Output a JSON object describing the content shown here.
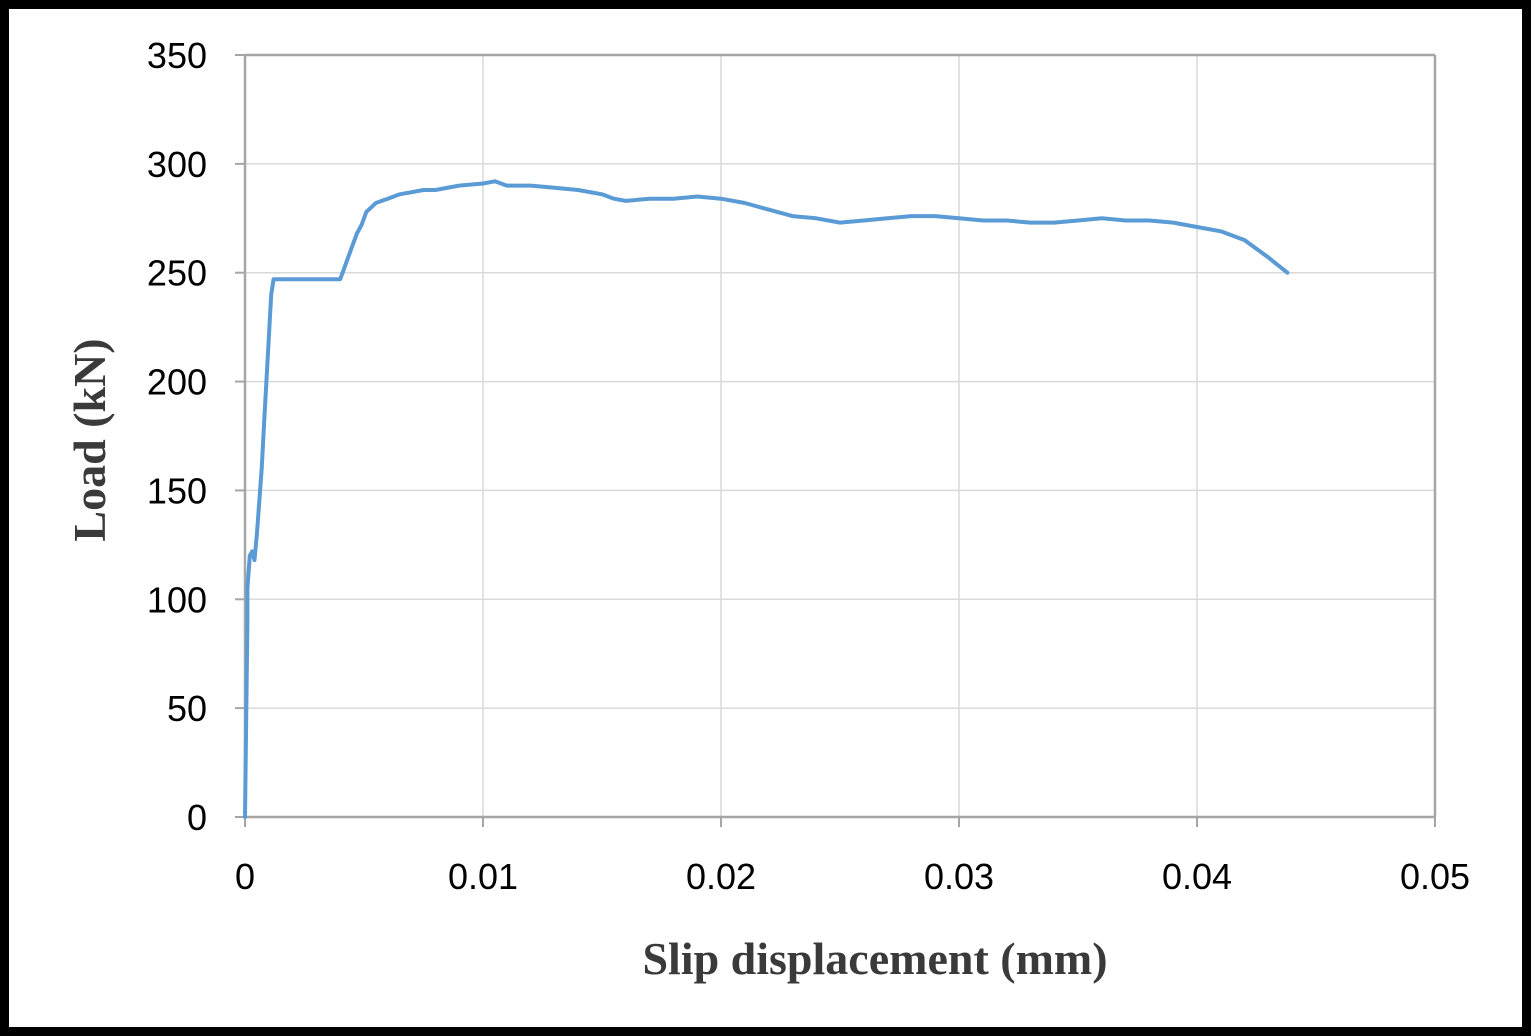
{
  "chart_data": {
    "type": "line",
    "xlabel": "Slip displacement (mm)",
    "ylabel": "Load (kN)",
    "xlim": [
      0,
      0.05
    ],
    "ylim": [
      0,
      350
    ],
    "x_ticks": [
      "0",
      "0.01",
      "0.02",
      "0.03",
      "0.04",
      "0.05"
    ],
    "y_ticks": [
      "0",
      "50",
      "100",
      "150",
      "200",
      "250",
      "300",
      "350"
    ],
    "grid": true,
    "legend": "none",
    "colors": {
      "series": "#5b9bd5",
      "grid": "#d9d9d9",
      "axis": "#a6a6a6"
    },
    "series": [
      {
        "x": [
          0,
          0.0001,
          0.0001,
          0.0002,
          0.0003,
          0.0004,
          0.0005,
          0.0006,
          0.0007,
          0.0008,
          0.0009,
          0.001,
          0.0011,
          0.0012,
          0.0013,
          0.002,
          0.003,
          0.004,
          0.0041,
          0.0043,
          0.0045,
          0.0047,
          0.0049,
          0.0051,
          0.0055,
          0.006,
          0.0065,
          0.007,
          0.0075,
          0.008,
          0.009,
          0.01,
          0.0105,
          0.011,
          0.012,
          0.013,
          0.014,
          0.015,
          0.0155,
          0.016,
          0.017,
          0.018,
          0.019,
          0.02,
          0.021,
          0.022,
          0.023,
          0.024,
          0.025,
          0.026,
          0.027,
          0.028,
          0.029,
          0.03,
          0.031,
          0.032,
          0.033,
          0.034,
          0.035,
          0.036,
          0.037,
          0.038,
          0.039,
          0.04,
          0.041,
          0.042,
          0.043,
          0.0438
        ],
        "y": [
          0,
          90,
          105,
          120,
          122,
          118,
          130,
          145,
          160,
          180,
          200,
          220,
          240,
          247,
          247,
          247,
          247,
          247,
          250,
          256,
          262,
          268,
          272,
          278,
          282,
          284,
          286,
          287,
          288,
          288,
          290,
          291,
          292,
          290,
          290,
          289,
          288,
          286,
          284,
          283,
          284,
          284,
          285,
          284,
          282,
          279,
          276,
          275,
          273,
          274,
          275,
          276,
          276,
          275,
          274,
          274,
          273,
          273,
          274,
          275,
          274,
          274,
          273,
          271,
          269,
          265,
          257,
          250
        ]
      }
    ]
  }
}
